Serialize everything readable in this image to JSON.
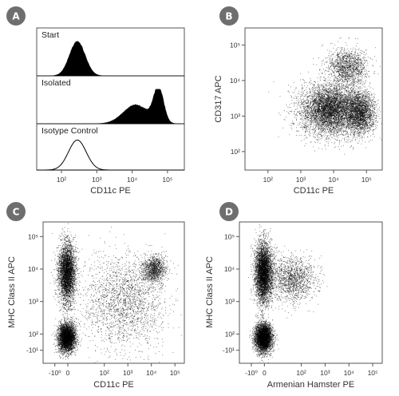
{
  "chart_data": [
    {
      "panel": "A",
      "type": "area",
      "xlabel": "CD11c PE",
      "x_scale": "log",
      "xlim": [
        20,
        300000
      ],
      "xticks": [
        "10²",
        "10³",
        "10⁴",
        "10⁵"
      ],
      "series": [
        {
          "name": "Start",
          "filled": true,
          "peaks": [
            {
              "center_log": 2.45,
              "width_log": 0.22,
              "height": 1.0
            }
          ]
        },
        {
          "name": "Isolated",
          "filled": true,
          "peaks": [
            {
              "center_log": 4.1,
              "width_log": 0.35,
              "height": 0.55
            },
            {
              "center_log": 4.75,
              "width_log": 0.14,
              "height": 1.0
            }
          ]
        },
        {
          "name": "Isotype Control",
          "filled": false,
          "peaks": [
            {
              "center_log": 2.45,
              "width_log": 0.25,
              "height": 0.9
            }
          ]
        }
      ]
    },
    {
      "panel": "B",
      "type": "scatter",
      "xlabel": "CD11c PE",
      "ylabel": "CD317 APC",
      "x_scale": "log",
      "y_scale": "log",
      "xlim": [
        20,
        300000
      ],
      "ylim": [
        30,
        300000
      ],
      "xticks": [
        "10²",
        "10³",
        "10⁴",
        "10⁵"
      ],
      "yticks": [
        "10²",
        "10³",
        "10⁴",
        "10⁵"
      ],
      "populations": [
        {
          "center": [
            3.9,
            3.2
          ],
          "spread": [
            0.45,
            0.35
          ],
          "weight": 0.6
        },
        {
          "center": [
            4.4,
            4.4
          ],
          "spread": [
            0.3,
            0.25
          ],
          "weight": 0.15
        },
        {
          "center": [
            4.8,
            3.1
          ],
          "spread": [
            0.22,
            0.3
          ],
          "weight": 0.25
        }
      ]
    },
    {
      "panel": "C",
      "type": "scatter",
      "xlabel": "CD11c PE",
      "ylabel": "MHC Class II APC",
      "x_scale": "biexponential",
      "y_scale": "biexponential",
      "xticks": [
        "-10⁰",
        "0",
        "10²",
        "10³",
        "10⁴",
        "10⁵"
      ],
      "yticks": [
        "-10¹",
        "10²",
        "10³",
        "10⁴",
        "10⁵"
      ],
      "populations": [
        {
          "center": [
            0.4,
            3.9
          ],
          "spread": [
            0.18,
            0.45
          ],
          "weight": 0.35
        },
        {
          "center": [
            0.4,
            1.9
          ],
          "spread": [
            0.18,
            0.22
          ],
          "weight": 0.35
        },
        {
          "center": [
            4.1,
            4.0
          ],
          "spread": [
            0.25,
            0.2
          ],
          "weight": 0.1
        },
        {
          "center": [
            2.8,
            3.0
          ],
          "spread": [
            0.9,
            0.7
          ],
          "weight": 0.2
        }
      ]
    },
    {
      "panel": "D",
      "type": "scatter",
      "xlabel": "Armenian Hamster PE",
      "ylabel": "MHC Class II APC",
      "x_scale": "biexponential",
      "y_scale": "biexponential",
      "xticks": [
        "-10⁰",
        "0",
        "10²",
        "10³",
        "10⁴",
        "10⁵"
      ],
      "yticks": [
        "-10¹",
        "10²",
        "10³",
        "10⁴",
        "10⁵"
      ],
      "populations": [
        {
          "center": [
            0.4,
            3.9
          ],
          "spread": [
            0.18,
            0.45
          ],
          "weight": 0.45
        },
        {
          "center": [
            0.4,
            1.9
          ],
          "spread": [
            0.18,
            0.22
          ],
          "weight": 0.4
        },
        {
          "center": [
            1.6,
            3.7
          ],
          "spread": [
            0.5,
            0.35
          ],
          "weight": 0.15
        }
      ]
    }
  ],
  "badges": [
    "A",
    "B",
    "C",
    "D"
  ],
  "colors": {
    "badge": "#6e6e6e",
    "dots": "#000000",
    "frame": "#555555"
  }
}
